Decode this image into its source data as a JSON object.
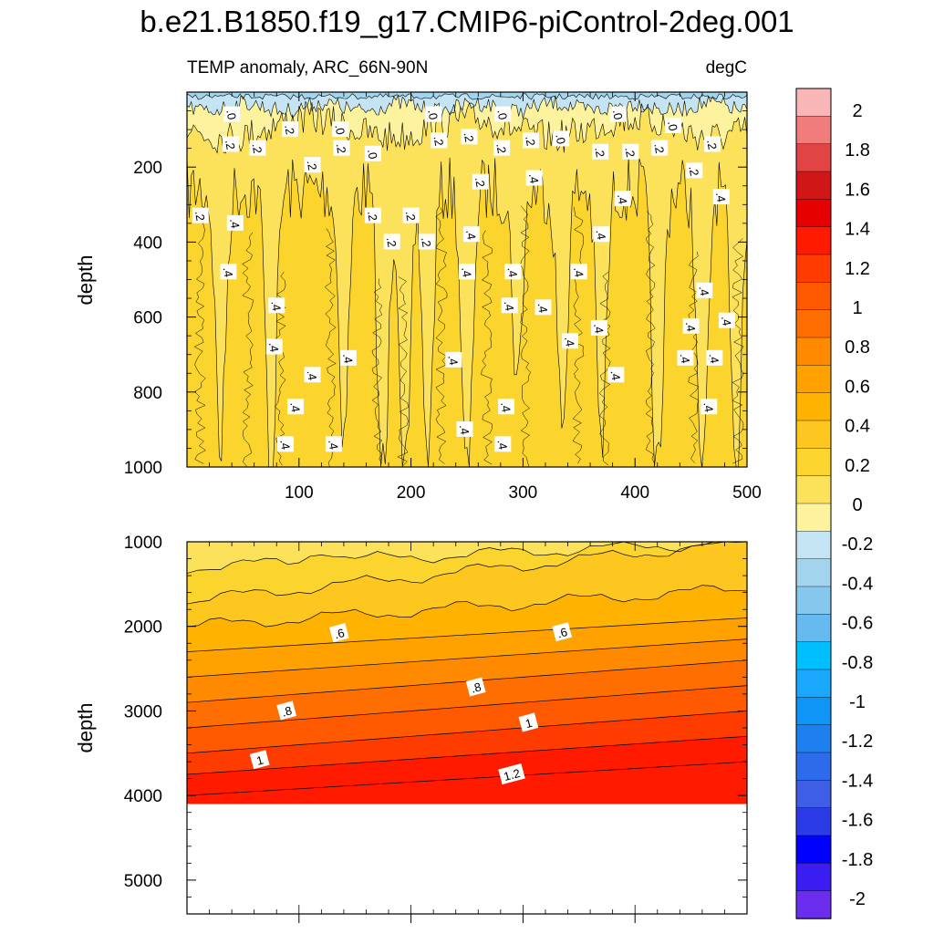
{
  "title": "b.e21.B1850.f19_g17.CMIP6-piControl-2deg.001",
  "subtitle_left": "TEMP anomaly, ARC_66N-90N",
  "subtitle_right": "degC",
  "colorbar": {
    "levels": [
      -2,
      -1.8,
      -1.6,
      -1.4,
      -1.2,
      -1,
      -0.8,
      -0.6,
      -0.4,
      -0.2,
      0,
      0.2,
      0.4,
      0.6,
      0.8,
      1,
      1.2,
      1.4,
      1.6,
      1.8,
      2
    ],
    "labels": [
      "2",
      "1.8",
      "1.6",
      "1.4",
      "1.2",
      "1",
      "0.8",
      "0.6",
      "0.4",
      "0.2",
      "0",
      "-0.2",
      "-0.4",
      "-0.6",
      "-0.8",
      "-1",
      "-1.2",
      "-1.4",
      "-1.6",
      "-1.8",
      "-2"
    ],
    "colors_top_to_bottom": [
      "#f9b6b6",
      "#f07c7c",
      "#e04444",
      "#d01616",
      "#e60000",
      "#ff1a00",
      "#ff3c00",
      "#ff5a00",
      "#ff6e00",
      "#ff8a00",
      "#ffa200",
      "#ffb300",
      "#fdc71f",
      "#fbd42d",
      "#fce25a",
      "#fdf39e",
      "#c4e4f3",
      "#a3d4ee",
      "#86c7ee",
      "#66baf0",
      "#00bfff",
      "#1aa8ff",
      "#0f95f5",
      "#1e80ee",
      "#2d6bea",
      "#3d5ee5",
      "#2b3be6",
      "#0000ff",
      "#3a1df0",
      "#6a2ded"
    ]
  },
  "chart_data": [
    {
      "type": "contour",
      "panel": "upper",
      "xlabel": "",
      "ylabel": "depth",
      "xlim": [
        0,
        500
      ],
      "ylim": [
        1000,
        0
      ],
      "xticks": [
        100,
        200,
        300,
        400,
        500
      ],
      "xtick_labels": [
        "100",
        "200",
        "300",
        "400",
        "500"
      ],
      "yticks": [
        200,
        400,
        600,
        800,
        1000
      ],
      "ytick_labels": [
        "200",
        "400",
        "600",
        "800",
        "1000"
      ],
      "fill_bands": [
        {
          "level": "-0.2 to 0",
          "from_depth": 0,
          "to_depth": 40
        },
        {
          "level": "0 to 0.2",
          "from_depth": 40,
          "to_depth": 90
        },
        {
          "level": "0.2 to 0.4",
          "from_depth": 90,
          "to_depth": 300
        },
        {
          "level": "0.4 to 0.6",
          "from_depth": 300,
          "to_depth": 1000
        }
      ],
      "contour_labels": [
        {
          "text": ".0",
          "x": 40,
          "y": 60
        },
        {
          "text": ".2",
          "x": 92,
          "y": 100
        },
        {
          "text": ".0",
          "x": 137,
          "y": 100
        },
        {
          "text": ".0",
          "x": 220,
          "y": 60
        },
        {
          "text": ".0",
          "x": 282,
          "y": 60
        },
        {
          "text": ".0",
          "x": 385,
          "y": 60
        },
        {
          "text": ".0",
          "x": 434,
          "y": 90
        },
        {
          "text": ".2",
          "x": 39,
          "y": 140
        },
        {
          "text": ".2",
          "x": 63,
          "y": 150
        },
        {
          "text": ".2",
          "x": 112,
          "y": 195
        },
        {
          "text": ".2",
          "x": 138,
          "y": 150
        },
        {
          "text": ".0",
          "x": 166,
          "y": 165
        },
        {
          "text": ".2",
          "x": 225,
          "y": 130
        },
        {
          "text": ".2",
          "x": 252,
          "y": 120
        },
        {
          "text": ".2",
          "x": 281,
          "y": 150
        },
        {
          "text": ".2",
          "x": 307,
          "y": 130
        },
        {
          "text": ".0",
          "x": 334,
          "y": 125
        },
        {
          "text": ".2",
          "x": 369,
          "y": 160
        },
        {
          "text": ".2",
          "x": 396,
          "y": 160
        },
        {
          "text": ".2",
          "x": 422,
          "y": 150
        },
        {
          "text": ".2",
          "x": 469,
          "y": 140
        },
        {
          "text": ".2",
          "x": 453,
          "y": 210
        },
        {
          "text": ".2",
          "x": 12,
          "y": 330
        },
        {
          "text": ".4",
          "x": 43,
          "y": 350
        },
        {
          "text": ".2",
          "x": 166,
          "y": 330
        },
        {
          "text": ".2",
          "x": 200,
          "y": 330
        },
        {
          "text": ".2",
          "x": 183,
          "y": 400
        },
        {
          "text": ".2",
          "x": 214,
          "y": 400
        },
        {
          "text": ".2",
          "x": 262,
          "y": 240
        },
        {
          "text": ".4",
          "x": 310,
          "y": 230
        },
        {
          "text": ".4",
          "x": 389,
          "y": 285
        },
        {
          "text": ".4",
          "x": 477,
          "y": 280
        },
        {
          "text": ".4",
          "x": 254,
          "y": 380
        },
        {
          "text": ".4",
          "x": 370,
          "y": 380
        },
        {
          "text": ".4",
          "x": 37,
          "y": 480
        },
        {
          "text": ".4",
          "x": 250,
          "y": 480
        },
        {
          "text": ".4",
          "x": 291,
          "y": 480
        },
        {
          "text": ".4",
          "x": 350,
          "y": 480
        },
        {
          "text": ".4",
          "x": 462,
          "y": 530
        },
        {
          "text": ".4",
          "x": 80,
          "y": 570
        },
        {
          "text": ".4",
          "x": 288,
          "y": 570
        },
        {
          "text": ".4",
          "x": 318,
          "y": 575
        },
        {
          "text": ".4",
          "x": 450,
          "y": 625
        },
        {
          "text": ".4",
          "x": 482,
          "y": 610
        },
        {
          "text": ".4",
          "x": 368,
          "y": 630
        },
        {
          "text": ".4",
          "x": 342,
          "y": 665
        },
        {
          "text": ".4",
          "x": 78,
          "y": 680
        },
        {
          "text": ".4",
          "x": 144,
          "y": 710
        },
        {
          "text": ".4",
          "x": 238,
          "y": 715
        },
        {
          "text": ".4",
          "x": 445,
          "y": 710
        },
        {
          "text": ".4",
          "x": 471,
          "y": 710
        },
        {
          "text": ".4",
          "x": 112,
          "y": 755
        },
        {
          "text": ".4",
          "x": 383,
          "y": 755
        },
        {
          "text": ".4",
          "x": 97,
          "y": 840
        },
        {
          "text": ".4",
          "x": 285,
          "y": 840
        },
        {
          "text": ".4",
          "x": 466,
          "y": 840
        },
        {
          "text": ".4",
          "x": 248,
          "y": 900
        },
        {
          "text": ".4",
          "x": 88,
          "y": 940
        },
        {
          "text": ".4",
          "x": 131,
          "y": 940
        },
        {
          "text": ".4",
          "x": 282,
          "y": 940
        }
      ]
    },
    {
      "type": "contour",
      "panel": "lower",
      "xlabel": "",
      "ylabel": "depth",
      "xlim": [
        0,
        500
      ],
      "ylim": [
        5400,
        1000
      ],
      "yticks": [
        1000,
        2000,
        3000,
        4000,
        5000
      ],
      "ytick_labels": [
        "1000",
        "2000",
        "3000",
        "4000",
        "5000"
      ],
      "data_bottom_depth": 4100,
      "left_edge_contour_depths": [
        1000,
        1300,
        1700,
        2000,
        2300,
        2600,
        2900,
        3200,
        3500,
        3750,
        4000
      ],
      "right_edge_contour_depths": [
        1000,
        1000,
        1000,
        1550,
        1900,
        2150,
        2400,
        2700,
        3000,
        3300,
        3600
      ],
      "contour_labels": [
        {
          "text": ".6",
          "x": 136,
          "y": 2080
        },
        {
          "text": ".6",
          "x": 335,
          "y": 2070
        },
        {
          "text": ".8",
          "x": 89,
          "y": 3000
        },
        {
          "text": ".8",
          "x": 258,
          "y": 2720
        },
        {
          "text": "1",
          "x": 65,
          "y": 3580
        },
        {
          "text": "1",
          "x": 305,
          "y": 3140
        },
        {
          "text": "1.2",
          "x": 290,
          "y": 3750
        }
      ]
    }
  ]
}
